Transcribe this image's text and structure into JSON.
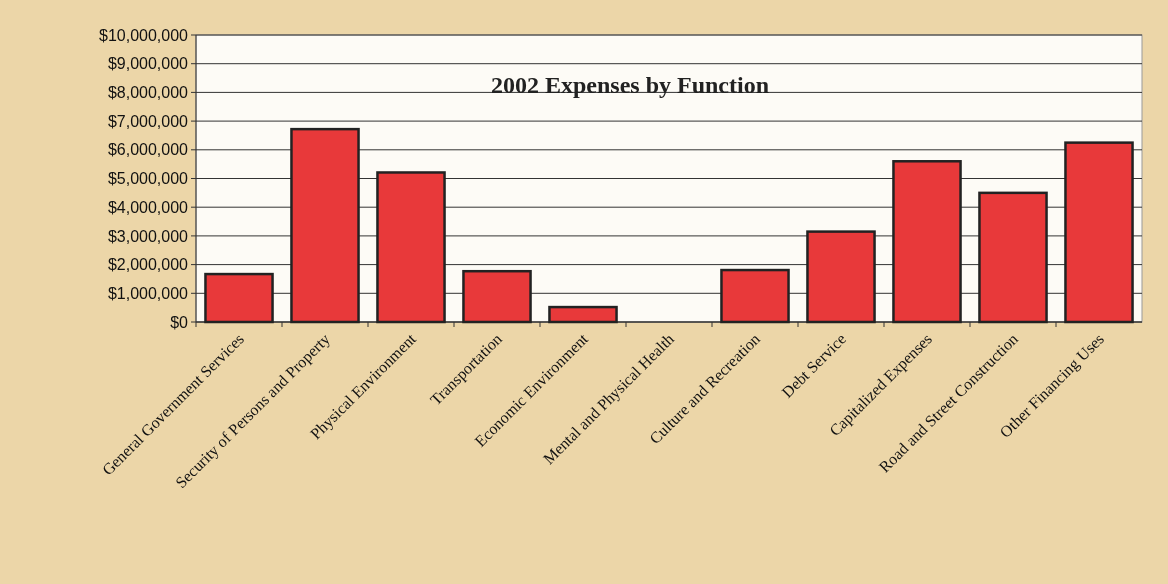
{
  "chart_data": {
    "type": "bar",
    "title": "2002 Expenses by Function",
    "categories": [
      "General Government Services",
      "Security of Persons and Property",
      "Physical Environment",
      "Transportation",
      "Economic Environment",
      "Mental and Physical Health",
      "Culture and Recreation",
      "Debt Service",
      "Capitalized Expenses",
      "Road and Street Construction",
      "Other Financing Uses"
    ],
    "values": [
      1670000,
      6720000,
      5210000,
      1770000,
      520000,
      0,
      1810000,
      3150000,
      5600000,
      4500000,
      6250000
    ],
    "color": "#e8393a",
    "ylim": [
      0,
      10000000
    ],
    "yticks": [
      {
        "value": 0,
        "label": "$0"
      },
      {
        "value": 1000000,
        "label": "$1,000,000"
      },
      {
        "value": 2000000,
        "label": "$2,000,000"
      },
      {
        "value": 3000000,
        "label": "$3,000,000"
      },
      {
        "value": 4000000,
        "label": "$4,000,000"
      },
      {
        "value": 5000000,
        "label": "$5,000,000"
      },
      {
        "value": 6000000,
        "label": "$6,000,000"
      },
      {
        "value": 7000000,
        "label": "$7,000,000"
      },
      {
        "value": 8000000,
        "label": "$8,000,000"
      },
      {
        "value": 9000000,
        "label": "$9,000,000"
      },
      {
        "value": 10000000,
        "label": "$10,000,000"
      }
    ],
    "grid": "y"
  }
}
